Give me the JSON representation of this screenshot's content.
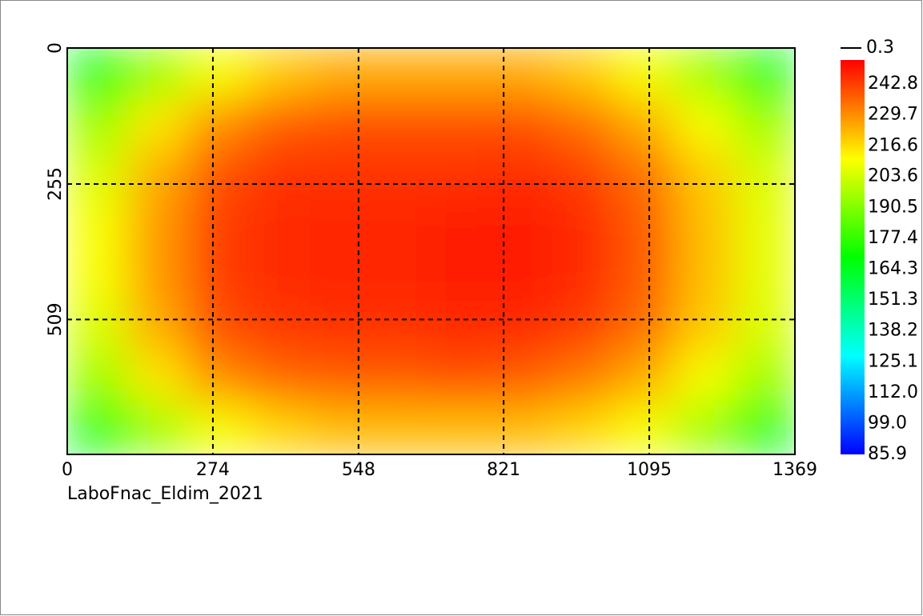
{
  "chart_data": {
    "type": "heatmap",
    "caption": "LaboFnac_Eldim_2021",
    "xlim": [
      0,
      1369
    ],
    "xticks": [
      0,
      274,
      548,
      821,
      1095,
      1369
    ],
    "ylim": [
      0,
      762
    ],
    "yticks": [
      0,
      255,
      509
    ],
    "grid": true,
    "z": [
      [
        165,
        195,
        210,
        220,
        225,
        225,
        225,
        225,
        220,
        210,
        195,
        165
      ],
      [
        195,
        215,
        230,
        238,
        240,
        240,
        240,
        240,
        235,
        225,
        210,
        195
      ],
      [
        205,
        225,
        240,
        245,
        245,
        245,
        245,
        246,
        243,
        235,
        220,
        205
      ],
      [
        210,
        228,
        243,
        246,
        247,
        247,
        248,
        248,
        246,
        238,
        222,
        207
      ],
      [
        210,
        228,
        243,
        246,
        247,
        247,
        248,
        248,
        246,
        238,
        222,
        207
      ],
      [
        205,
        225,
        240,
        244,
        245,
        245,
        246,
        246,
        243,
        235,
        220,
        205
      ],
      [
        195,
        215,
        230,
        236,
        238,
        238,
        240,
        238,
        233,
        225,
        210,
        195
      ],
      [
        165,
        195,
        210,
        218,
        222,
        222,
        222,
        222,
        218,
        210,
        195,
        165
      ]
    ],
    "colorbar": {
      "lim": [
        85.9,
        253
      ],
      "colors": [
        "#0000ff",
        "#00ffff",
        "#00ff00",
        "#ffff00",
        "#ff0000"
      ],
      "marker_label": 0.3,
      "ticks": [
        85.9,
        {
          "value": 99,
          "label": "99.0"
        },
        {
          "value": 112,
          "label": "112.0"
        },
        125.1,
        138.2,
        151.3,
        164.3,
        177.4,
        190.5,
        203.6,
        216.6,
        229.7,
        242.8
      ]
    }
  }
}
